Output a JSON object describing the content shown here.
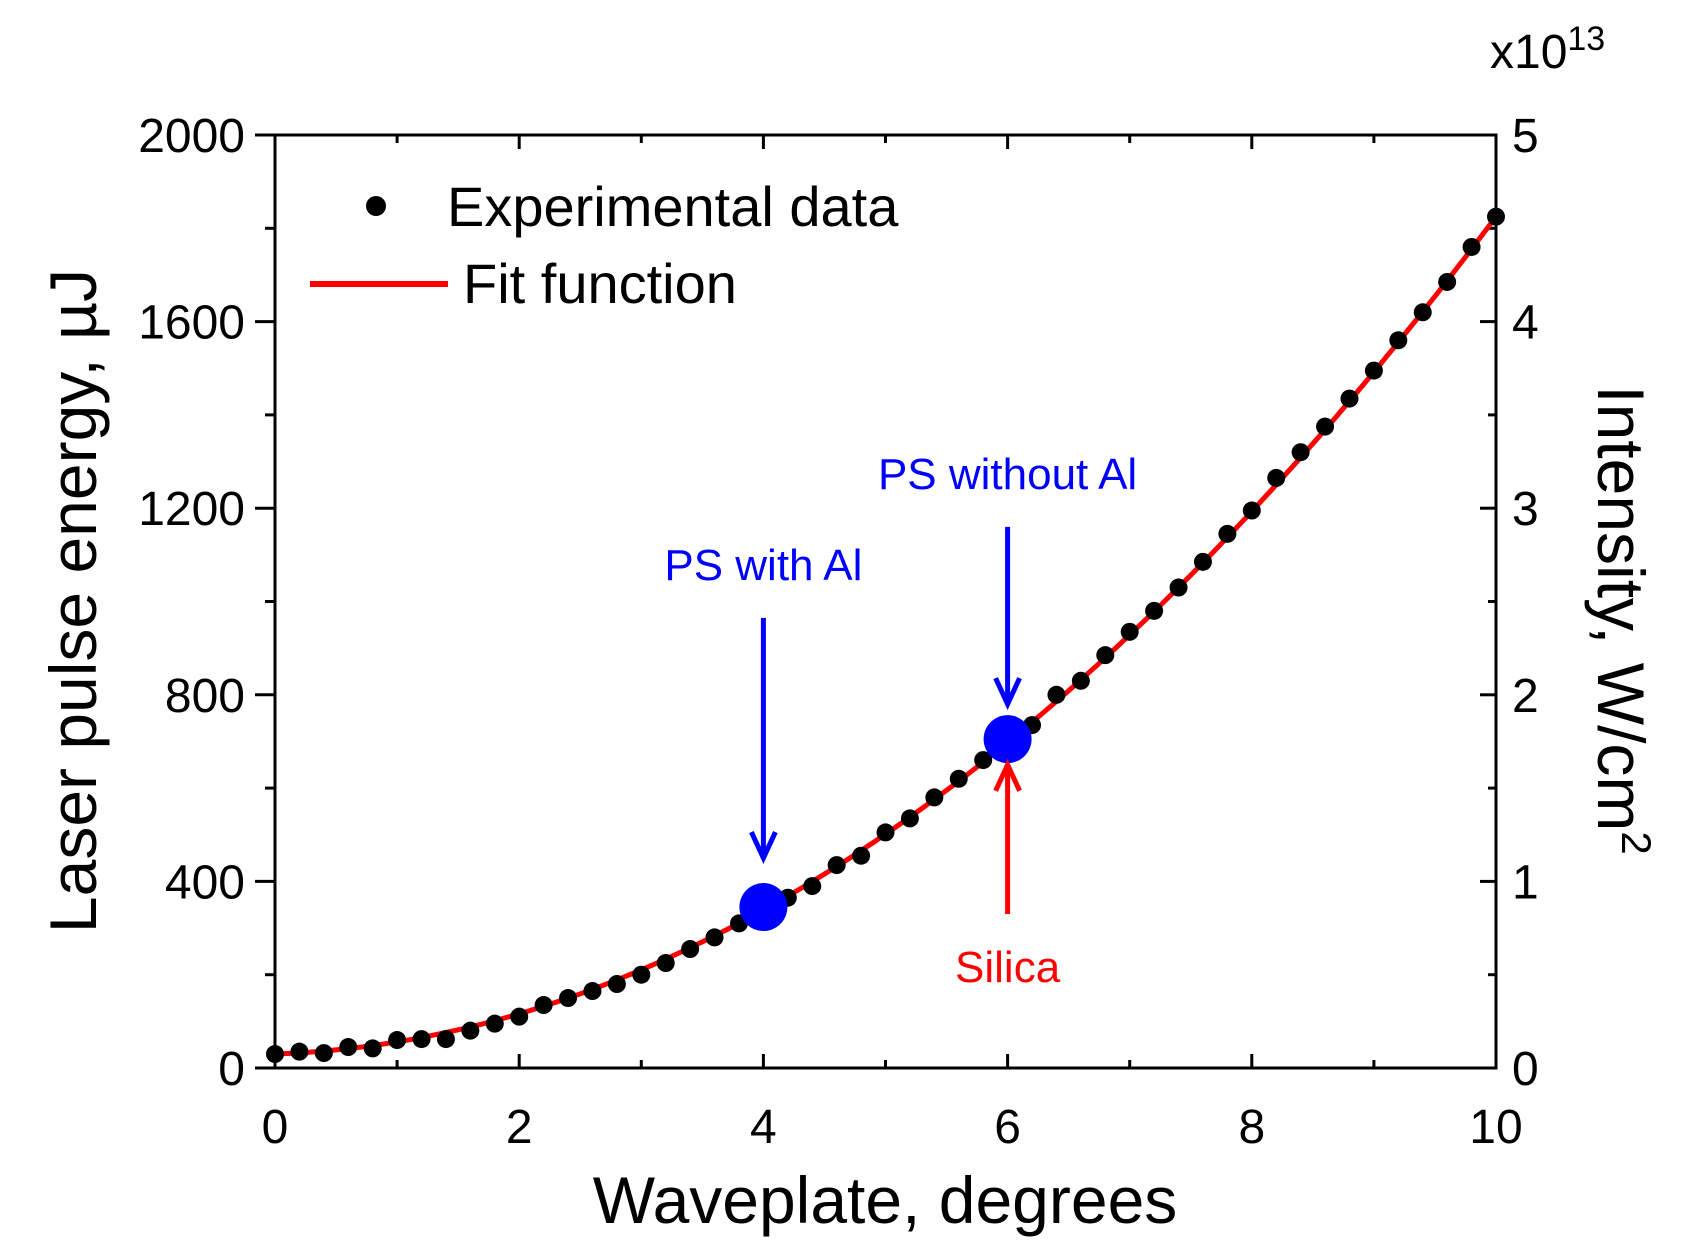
{
  "chart_data": {
    "type": "scatter",
    "title": "",
    "xlabel": "Waveplate, degrees",
    "ylabel": "Laser pulse energy, µJ",
    "y2label_main": "Intensity, W/cm",
    "y2label_sup": "2",
    "y2_multiplier_base": "x10",
    "y2_multiplier_exp": "13",
    "xlim": [
      0,
      10
    ],
    "ylim": [
      0,
      2000
    ],
    "y2lim": [
      0,
      5
    ],
    "x_ticks": [
      0,
      2,
      4,
      6,
      8,
      10
    ],
    "y_ticks": [
      0,
      400,
      800,
      1200,
      1600,
      2000
    ],
    "y2_ticks": [
      0,
      1,
      2,
      3,
      4,
      5
    ],
    "grid": false,
    "legend_position": "top-left",
    "series": [
      {
        "name": "Experimental data",
        "kind": "scatter",
        "color": "#000000",
        "x": [
          0,
          0.2,
          0.4,
          0.6,
          0.8,
          1.0,
          1.2,
          1.4,
          1.6,
          1.8,
          2.0,
          2.2,
          2.4,
          2.6,
          2.8,
          3.0,
          3.2,
          3.4,
          3.6,
          3.8,
          4.0,
          4.2,
          4.4,
          4.6,
          4.8,
          5.0,
          5.2,
          5.4,
          5.6,
          5.8,
          6.0,
          6.2,
          6.4,
          6.6,
          6.8,
          7.0,
          7.2,
          7.4,
          7.6,
          7.8,
          8.0,
          8.2,
          8.4,
          8.6,
          8.8,
          9.0,
          9.2,
          9.4,
          9.6,
          9.8,
          10.0
        ],
        "y": [
          30,
          35,
          32,
          45,
          42,
          60,
          62,
          62,
          80,
          95,
          110,
          135,
          150,
          165,
          180,
          200,
          225,
          255,
          280,
          310,
          340,
          365,
          390,
          435,
          455,
          505,
          535,
          580,
          620,
          660,
          700,
          735,
          800,
          830,
          885,
          935,
          980,
          1030,
          1085,
          1145,
          1195,
          1265,
          1320,
          1375,
          1435,
          1495,
          1560,
          1620,
          1685,
          1760,
          1825
        ]
      },
      {
        "name": "Fit function",
        "kind": "line",
        "color": "#ff0000",
        "model": "y = 30 + 9*x + 17.05*x^2"
      }
    ],
    "highlighted_points": [
      {
        "x": 4,
        "y": 345,
        "color": "#0000ff"
      },
      {
        "x": 6,
        "y": 705,
        "color": "#0000ff"
      }
    ],
    "annotations": [
      {
        "text": "PS with Al",
        "color": "#0000ff",
        "x": 4,
        "arrow_from_y": 965,
        "arrow_to_y": 450,
        "arrow": "down"
      },
      {
        "text": "PS without Al",
        "color": "#0000ff",
        "x": 6,
        "arrow_from_y": 1160,
        "arrow_to_y": 780,
        "arrow": "down"
      },
      {
        "text": "Silica",
        "color": "#ff0000",
        "x": 6,
        "arrow_from_y": 330,
        "arrow_to_y": 650,
        "arrow": "up"
      }
    ]
  }
}
